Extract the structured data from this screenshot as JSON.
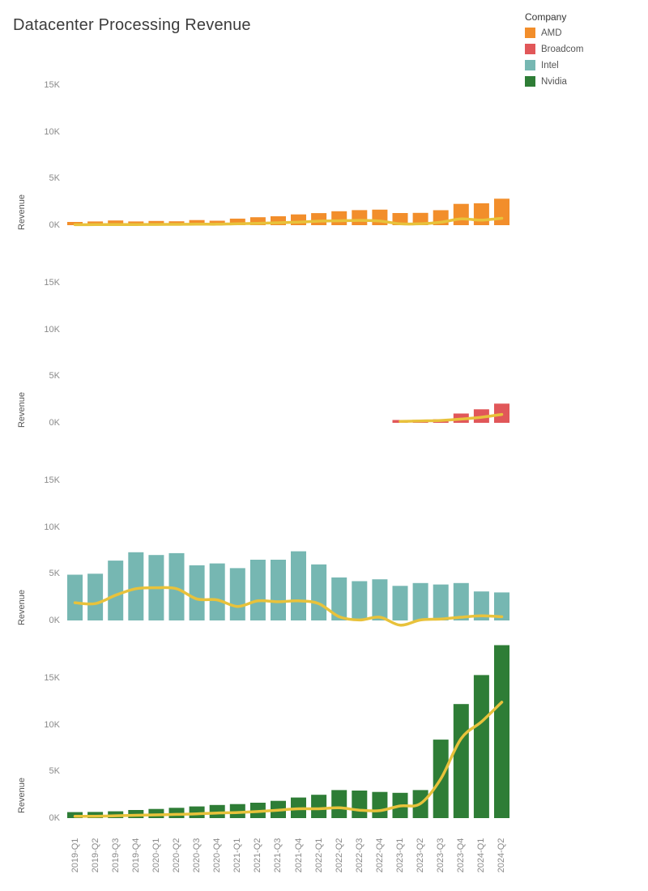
{
  "title": "Datacenter Processing Revenue",
  "legend": {
    "title": "Company",
    "items": [
      {
        "label": "AMD",
        "color": "#F28E2B"
      },
      {
        "label": "Broadcom",
        "color": "#E15759"
      },
      {
        "label": "Intel",
        "color": "#76B7B2"
      },
      {
        "label": "Nvidia",
        "color": "#2E7D36"
      }
    ]
  },
  "chart_data": {
    "type": "bar",
    "layout": "small-multiples-rows",
    "title": "Datacenter Processing Revenue",
    "ylabel": "Revenue",
    "grid": false,
    "legend_position": "top-right",
    "line_color": "#E8C23B",
    "yticks": {
      "values": [
        0,
        5,
        10,
        15
      ],
      "labels": [
        "0K",
        "5K",
        "10K",
        "15K"
      ]
    },
    "values_unit": "K",
    "categories": [
      "2019-Q1",
      "2019-Q2",
      "2019-Q3",
      "2019-Q4",
      "2020-Q1",
      "2020-Q2",
      "2020-Q3",
      "2020-Q4",
      "2021-Q1",
      "2021-Q2",
      "2021-Q3",
      "2021-Q4",
      "2022-Q1",
      "2022-Q2",
      "2022-Q3",
      "2022-Q4",
      "2023-Q1",
      "2023-Q2",
      "2023-Q3",
      "2023-Q4",
      "2024-Q1",
      "2024-Q2"
    ],
    "panels": [
      {
        "company": "AMD",
        "bar_color": "#F28E2B",
        "ylim": [
          0,
          16.3
        ],
        "bars": [
          0.35,
          0.4,
          0.5,
          0.4,
          0.45,
          0.42,
          0.55,
          0.48,
          0.7,
          0.85,
          0.95,
          1.15,
          1.29,
          1.49,
          1.61,
          1.66,
          1.3,
          1.32,
          1.6,
          2.28,
          2.34,
          2.83
        ],
        "line": [
          0.05,
          0.06,
          0.08,
          0.07,
          0.08,
          0.09,
          0.11,
          0.1,
          0.16,
          0.2,
          0.26,
          0.32,
          0.43,
          0.47,
          0.51,
          0.44,
          0.15,
          0.15,
          0.31,
          0.67,
          0.54,
          0.74
        ]
      },
      {
        "company": "Broadcom",
        "bar_color": "#E15759",
        "ylim": [
          0,
          16.3
        ],
        "bars": [
          null,
          null,
          null,
          null,
          null,
          null,
          null,
          null,
          null,
          null,
          null,
          null,
          null,
          null,
          null,
          null,
          0.3,
          0.3,
          0.38,
          1.0,
          1.45,
          2.05
        ],
        "line": [
          null,
          null,
          null,
          null,
          null,
          null,
          null,
          null,
          null,
          null,
          null,
          null,
          null,
          null,
          null,
          null,
          0.15,
          0.2,
          0.25,
          0.4,
          0.6,
          0.9
        ]
      },
      {
        "company": "Intel",
        "bar_color": "#76B7B2",
        "ylim": [
          0,
          16.3
        ],
        "bars": [
          4.9,
          5.0,
          6.4,
          7.3,
          7.0,
          7.2,
          5.9,
          6.1,
          5.6,
          6.5,
          6.5,
          7.4,
          6.0,
          4.6,
          4.2,
          4.4,
          3.7,
          4.0,
          3.85,
          4.0,
          3.1,
          3.0
        ],
        "line": [
          1.9,
          1.8,
          2.7,
          3.4,
          3.5,
          3.4,
          2.3,
          2.2,
          1.5,
          2.1,
          2.0,
          2.1,
          1.8,
          0.4,
          0.05,
          0.35,
          -0.5,
          0.05,
          0.15,
          0.35,
          0.5,
          0.4
        ]
      },
      {
        "company": "Nvidia",
        "bar_color": "#2E7D36",
        "ylim": [
          0,
          19.1
        ],
        "bars": [
          0.64,
          0.66,
          0.73,
          0.87,
          0.98,
          1.1,
          1.25,
          1.4,
          1.5,
          1.65,
          1.85,
          2.2,
          2.5,
          3.0,
          2.95,
          2.8,
          2.7,
          3.0,
          8.4,
          12.2,
          15.3,
          18.5
        ],
        "line": [
          0.2,
          0.2,
          0.25,
          0.3,
          0.35,
          0.4,
          0.45,
          0.55,
          0.6,
          0.7,
          0.85,
          1.0,
          1.0,
          1.1,
          0.85,
          0.8,
          1.3,
          1.55,
          4.2,
          8.5,
          10.3,
          12.4
        ]
      }
    ]
  }
}
